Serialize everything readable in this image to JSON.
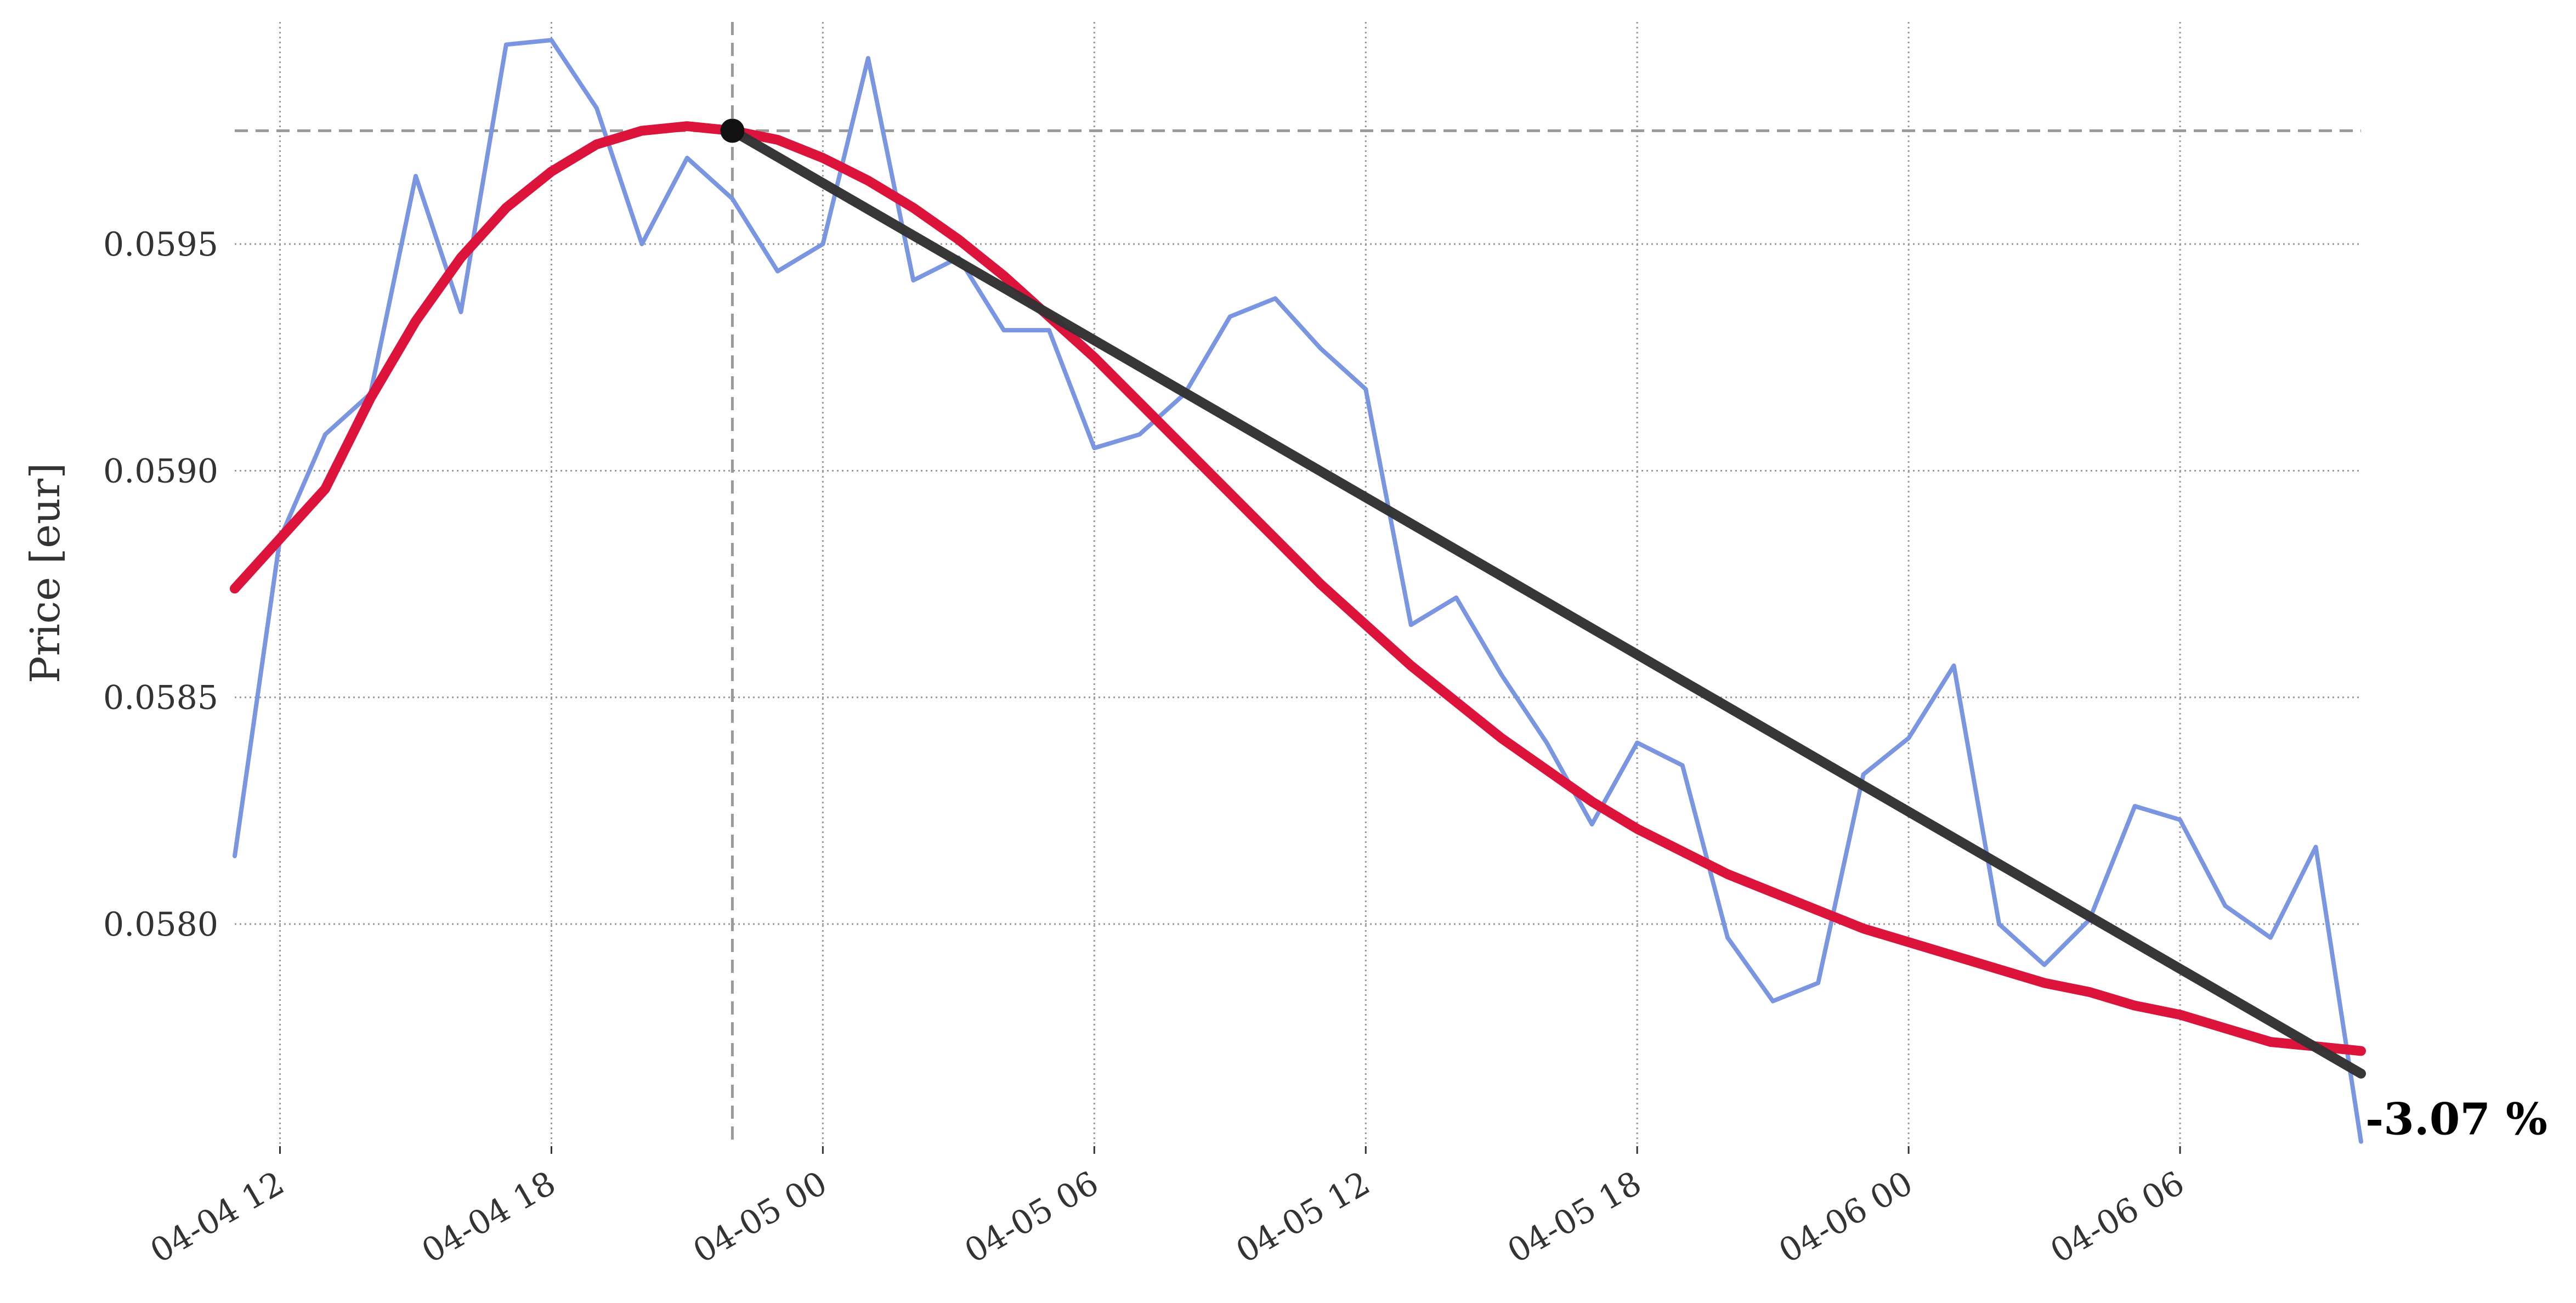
{
  "chart_data": {
    "type": "line",
    "title": "",
    "xlabel": "",
    "ylabel": "Price [eur]",
    "x_ticks": [
      "04-04 12",
      "04-04 18",
      "04-05 00",
      "04-05 06",
      "04-05 12",
      "04-05 18",
      "04-06 00",
      "04-06 06"
    ],
    "y_ticks": [
      "0.0580",
      "0.0585",
      "0.0590",
      "0.0595"
    ],
    "ylim": [
      0.05751,
      0.05999
    ],
    "xlim": [
      "2024-04-04 11:00",
      "2024-04-06 10:00"
    ],
    "grid": true,
    "x": [
      "2024-04-04 11:00",
      "2024-04-04 12:00",
      "2024-04-04 13:00",
      "2024-04-04 14:00",
      "2024-04-04 15:00",
      "2024-04-04 16:00",
      "2024-04-04 17:00",
      "2024-04-04 18:00",
      "2024-04-04 19:00",
      "2024-04-04 20:00",
      "2024-04-04 21:00",
      "2024-04-04 22:00",
      "2024-04-04 23:00",
      "2024-04-05 00:00",
      "2024-04-05 01:00",
      "2024-04-05 02:00",
      "2024-04-05 03:00",
      "2024-04-05 04:00",
      "2024-04-05 05:00",
      "2024-04-05 06:00",
      "2024-04-05 07:00",
      "2024-04-05 08:00",
      "2024-04-05 09:00",
      "2024-04-05 10:00",
      "2024-04-05 11:00",
      "2024-04-05 12:00",
      "2024-04-05 13:00",
      "2024-04-05 14:00",
      "2024-04-05 15:00",
      "2024-04-05 16:00",
      "2024-04-05 17:00",
      "2024-04-05 18:00",
      "2024-04-05 19:00",
      "2024-04-05 20:00",
      "2024-04-05 21:00",
      "2024-04-05 22:00",
      "2024-04-05 23:00",
      "2024-04-06 00:00",
      "2024-04-06 01:00",
      "2024-04-06 02:00",
      "2024-04-06 03:00",
      "2024-04-06 04:00",
      "2024-04-06 05:00",
      "2024-04-06 06:00",
      "2024-04-06 07:00",
      "2024-04-06 08:00",
      "2024-04-06 09:00",
      "2024-04-06 10:00"
    ],
    "series": [
      {
        "role": "price",
        "color": "#7b96e1",
        "values": [
          0.05815,
          0.05885,
          0.05908,
          0.05917,
          0.05965,
          0.05935,
          0.05994,
          0.05995,
          0.0598,
          0.0595,
          0.05969,
          0.0596,
          0.05944,
          0.0595,
          0.05991,
          0.05942,
          0.05947,
          0.05931,
          0.05931,
          0.05905,
          0.05908,
          0.05917,
          0.05934,
          0.05938,
          0.05927,
          0.05918,
          0.05866,
          0.05872,
          0.05855,
          0.0584,
          0.05822,
          0.0584,
          0.05835,
          0.05797,
          0.05783,
          0.05787,
          0.05833,
          0.05841,
          0.05857,
          0.058,
          0.05791,
          0.05801,
          0.05826,
          0.05823,
          0.05804,
          0.05797,
          0.05817,
          0.05752
        ]
      },
      {
        "role": "smoothed",
        "color": "#dc143c",
        "values": [
          0.05874,
          0.05885,
          0.05896,
          0.05916,
          0.05933,
          0.05947,
          0.05958,
          0.05966,
          0.05972,
          0.05975,
          0.05976,
          0.05975,
          0.05973,
          0.05969,
          0.05964,
          0.05958,
          0.05951,
          0.05943,
          0.05934,
          0.05925,
          0.05915,
          0.05905,
          0.05895,
          0.05885,
          0.05875,
          0.05866,
          0.05857,
          0.05849,
          0.05841,
          0.05834,
          0.05827,
          0.05821,
          0.05816,
          0.05811,
          0.05807,
          0.05803,
          0.05799,
          0.05796,
          0.05793,
          0.0579,
          0.05787,
          0.05785,
          0.05782,
          0.0578,
          0.05777,
          0.05774,
          0.05773,
          0.05772
        ]
      },
      {
        "role": "trend",
        "color": "#333333",
        "x": [
          "2024-04-04 22:00",
          "2024-04-06 10:00"
        ],
        "values": [
          0.05975,
          0.05767
        ]
      }
    ],
    "reference": {
      "x": "2024-04-04 22:00",
      "y": 0.05975,
      "color": "#999999"
    },
    "annotations": [
      {
        "text": "-3.07 %",
        "x": "2024-04-06 10:00",
        "y": 0.05757
      }
    ]
  }
}
